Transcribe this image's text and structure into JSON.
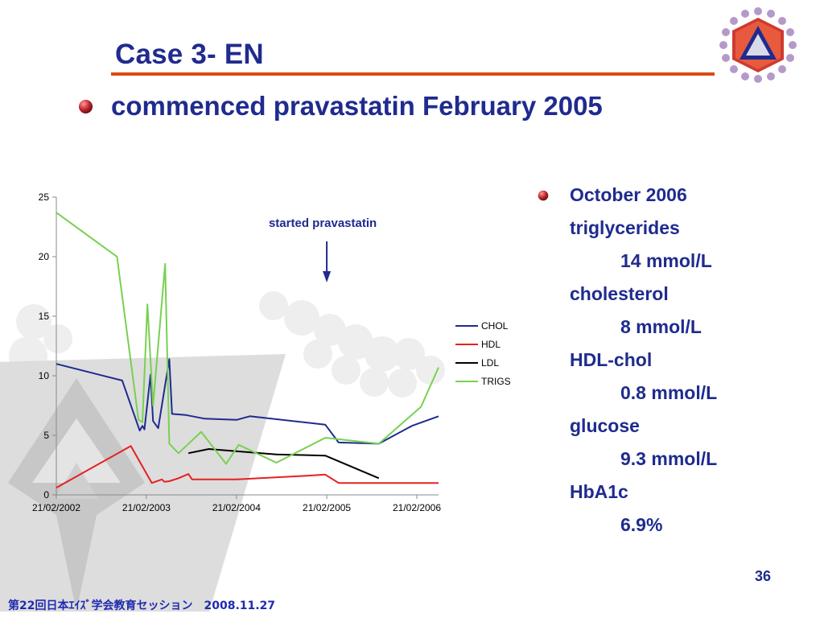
{
  "slide": {
    "title": "Case 3- EN",
    "main_bullet": "commenced pravastatin February 2005",
    "page_number": "36",
    "footer": "第22回日本ｴｲｽﾞ学会教育セッション　2008.11.27",
    "colors": {
      "title": "#1f2b8e",
      "rule": "#d94a12",
      "bullet": "#c0262b"
    }
  },
  "side_panel": [
    {
      "text": "October 2006",
      "style": "bullet"
    },
    {
      "text": "triglycerides",
      "style": "plain"
    },
    {
      "text": "14 mmol/L",
      "style": "indent"
    },
    {
      "text": "cholesterol",
      "style": "plain"
    },
    {
      "text": "8 mmol/L",
      "style": "indent"
    },
    {
      "text": "HDL-chol",
      "style": "plain"
    },
    {
      "text": "0.8 mmol/L",
      "style": "indent"
    },
    {
      "text": "glucose",
      "style": "plain"
    },
    {
      "text": "9.3 mmol/L",
      "style": "indent"
    },
    {
      "text": "HbA1c",
      "style": "plain"
    },
    {
      "text": "6.9%",
      "style": "indent"
    }
  ],
  "chart_data": {
    "type": "line",
    "title": "",
    "xlabel": "",
    "ylabel": "",
    "ylim": [
      0,
      25
    ],
    "yticks": [
      0,
      5,
      10,
      15,
      20,
      25
    ],
    "xlim": [
      "2002-02-21",
      "2006-05-20"
    ],
    "xticks": [
      "2002-02-21",
      "2003-02-21",
      "2004-02-21",
      "2005-02-21",
      "2006-02-21"
    ],
    "xtick_labels": [
      "21/02/2002",
      "21/02/2003",
      "21/02/2004",
      "21/02/2005",
      "21/02/2006"
    ],
    "grid": false,
    "legend_position": "right",
    "annotation": {
      "text": "started pravastatin",
      "x": "2005-02-21"
    },
    "series": [
      {
        "name": "CHOL",
        "color": "#1f2b8e",
        "points": [
          [
            "2002-02-21",
            11.0
          ],
          [
            "2002-11-15",
            9.6
          ],
          [
            "2003-01-25",
            5.4
          ],
          [
            "2003-02-05",
            5.8
          ],
          [
            "2003-02-13",
            5.5
          ],
          [
            "2003-03-10",
            10.1
          ],
          [
            "2003-03-20",
            6.2
          ],
          [
            "2003-04-10",
            5.6
          ],
          [
            "2003-05-25",
            11.4
          ],
          [
            "2003-06-05",
            6.8
          ],
          [
            "2003-08-01",
            6.7
          ],
          [
            "2003-10-15",
            6.4
          ],
          [
            "2004-02-21",
            6.3
          ],
          [
            "2004-04-15",
            6.6
          ],
          [
            "2005-02-15",
            5.9
          ],
          [
            "2005-04-10",
            4.4
          ],
          [
            "2005-09-20",
            4.3
          ],
          [
            "2006-02-01",
            5.8
          ],
          [
            "2006-05-20",
            6.6
          ]
        ]
      },
      {
        "name": "HDL",
        "color": "#e62020",
        "points": [
          [
            "2002-02-21",
            0.6
          ],
          [
            "2002-12-20",
            4.1
          ],
          [
            "2003-03-15",
            1.0
          ],
          [
            "2003-04-25",
            1.3
          ],
          [
            "2003-05-05",
            1.1
          ],
          [
            "2003-05-25",
            1.15
          ],
          [
            "2003-07-01",
            1.4
          ],
          [
            "2003-08-10",
            1.75
          ],
          [
            "2003-08-25",
            1.3
          ],
          [
            "2004-02-21",
            1.3
          ],
          [
            "2004-12-01",
            1.6
          ],
          [
            "2005-02-15",
            1.7
          ],
          [
            "2005-04-10",
            1.0
          ],
          [
            "2005-09-20",
            1.0
          ],
          [
            "2006-05-20",
            1.0
          ]
        ]
      },
      {
        "name": "LDL",
        "color": "#000000",
        "points": [
          [
            "2003-08-10",
            3.5
          ],
          [
            "2003-11-01",
            3.85
          ],
          [
            "2004-08-01",
            3.4
          ],
          [
            "2005-02-15",
            3.3
          ],
          [
            "2005-09-20",
            1.4
          ]
        ]
      },
      {
        "name": "TRIGS",
        "color": "#77d151",
        "points": [
          [
            "2002-02-21",
            23.7
          ],
          [
            "2002-10-25",
            20.0
          ],
          [
            "2003-01-20",
            6.3
          ],
          [
            "2003-02-05",
            6.1
          ],
          [
            "2003-02-25",
            16.0
          ],
          [
            "2003-03-20",
            7.5
          ],
          [
            "2003-05-08",
            19.4
          ],
          [
            "2003-05-25",
            4.3
          ],
          [
            "2003-07-01",
            3.5
          ],
          [
            "2003-10-01",
            5.3
          ],
          [
            "2004-01-10",
            2.6
          ],
          [
            "2004-03-01",
            4.2
          ],
          [
            "2004-08-01",
            2.7
          ],
          [
            "2005-02-15",
            4.8
          ],
          [
            "2005-09-20",
            4.3
          ],
          [
            "2006-03-10",
            7.4
          ],
          [
            "2006-05-20",
            10.7
          ]
        ]
      }
    ]
  }
}
